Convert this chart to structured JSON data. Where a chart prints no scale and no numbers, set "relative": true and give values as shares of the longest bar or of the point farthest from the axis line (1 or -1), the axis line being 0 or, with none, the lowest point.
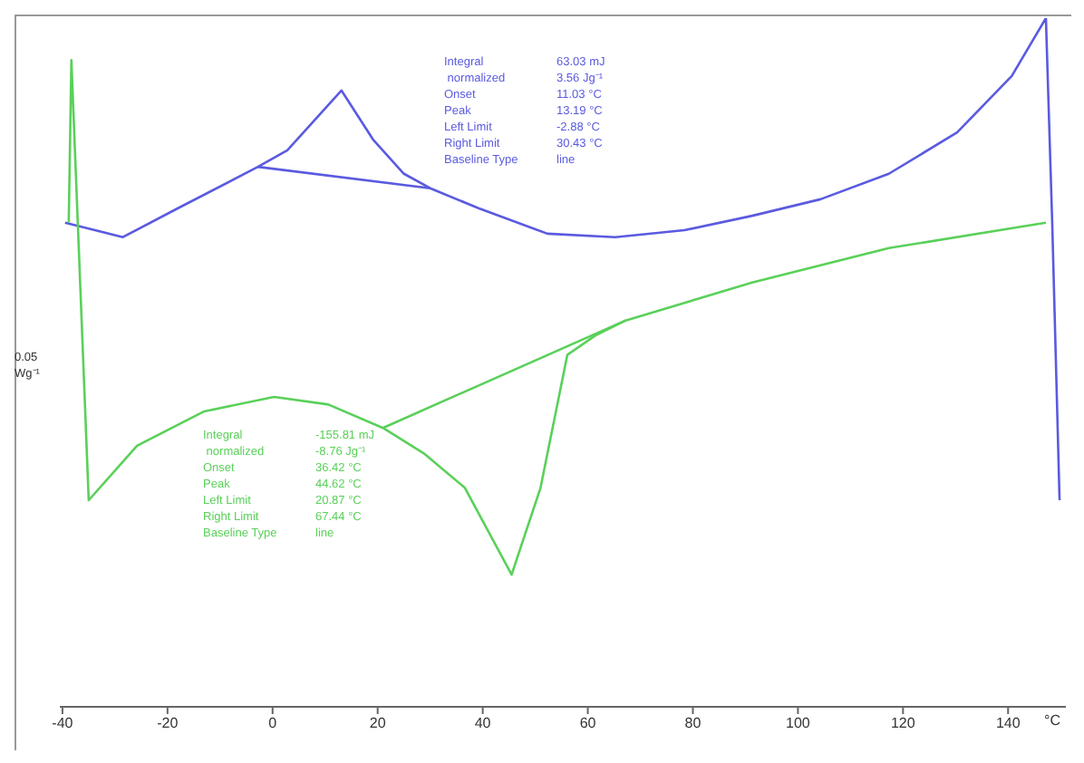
{
  "chart_data": {
    "type": "line",
    "relative": true,
    "xlabel": "°C",
    "xlim": [
      -40.5,
      151
    ],
    "xticks": [
      -40,
      -20,
      0,
      20,
      40,
      60,
      80,
      100,
      120,
      140
    ],
    "grid": false,
    "legend": false,
    "marker": "none",
    "line_style": "solid",
    "series": [
      {
        "color": "#5a5ae0",
        "x": [
          -39.5,
          -28.5,
          -18,
          -2.8,
          2.8,
          13.1,
          19.1,
          25,
          30,
          39.2,
          52.3,
          65.2,
          78.4,
          91.3,
          104.3,
          117.3,
          130.3,
          140.7,
          147.2,
          148.4,
          149.8
        ],
        "values": [
          0.703,
          0.682,
          0.724,
          0.784,
          0.808,
          0.895,
          0.824,
          0.774,
          0.753,
          0.724,
          0.687,
          0.682,
          0.692,
          0.713,
          0.737,
          0.774,
          0.834,
          0.916,
          1.0,
          0.703,
          0.3
        ]
      },
      {
        "color": "#5a5ae0",
        "x": [
          -2.8,
          30
        ],
        "values": [
          0.784,
          0.753
        ]
      },
      {
        "color": "#5ad05a",
        "x": [
          -38.8,
          -38.3,
          -35,
          -25.8,
          -13,
          0.3,
          10.6,
          21,
          28.8,
          36.6,
          45.5,
          51,
          56.1,
          61.4,
          67.2,
          91.3,
          117.3,
          147.2
        ],
        "values": [
          0.703,
          0.939,
          0.3,
          0.379,
          0.429,
          0.45,
          0.439,
          0.405,
          0.368,
          0.318,
          0.192,
          0.318,
          0.511,
          0.539,
          0.561,
          0.616,
          0.666,
          0.703
        ]
      },
      {
        "color": "#5ad05a",
        "x": [
          21,
          67.2
        ],
        "values": [
          0.405,
          0.561
        ]
      }
    ],
    "annotations": [
      "Integral\t63.03 mJ\n normalized\t3.56 Jg⁻¹\nOnset\t11.03 °C\nPeak\t13.19 °C\nLeft Limit\t-2.88 °C\nRight Limit\t30.43 °C\nBaseline Type\tline",
      "Integral\t-155.81 mJ\n normalized\t-8.76 Jg⁻¹\nOnset\t36.42 °C\nPeak\t44.62 °C\nLeft Limit\t20.87 °C\nRight Limit\t67.44 °C\nBaseline Type\tline",
      "0.05\nWg⁻¹"
    ]
  }
}
